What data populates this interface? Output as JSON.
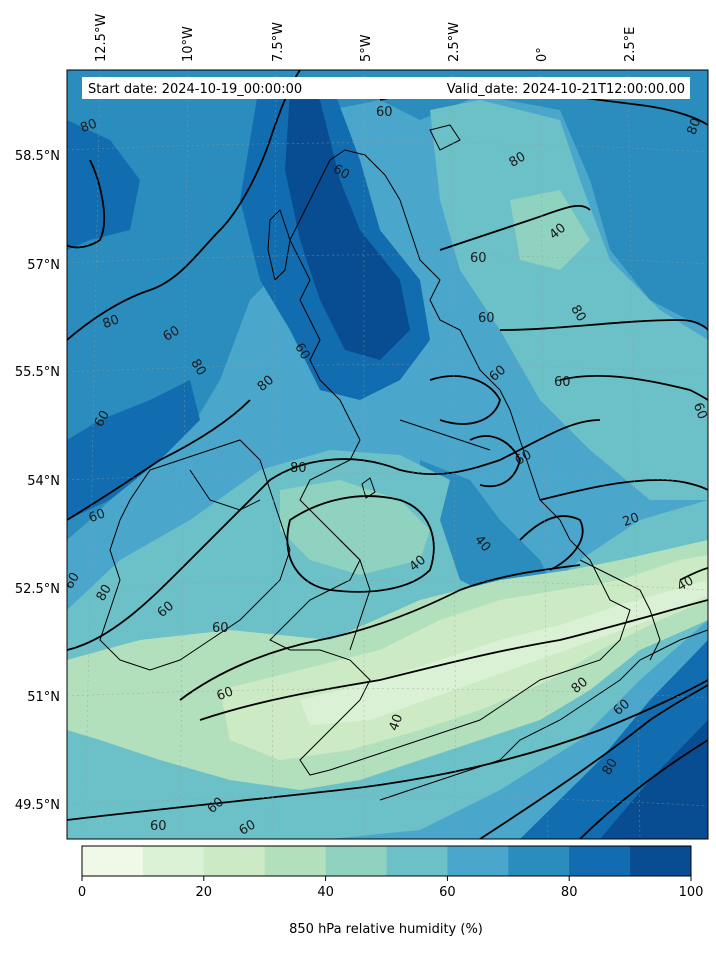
{
  "header": {
    "start_date": "Start date: 2024-10-19_00:00:00",
    "valid_date": "Valid_date: 2024-10-21T12:00:00.00"
  },
  "axes": {
    "longitude_labels": [
      "12.5°W",
      "10°W",
      "7.5°W",
      "5°W",
      "2.5°W",
      "0°",
      "2.5°E"
    ],
    "latitude_labels": [
      "58.5°N",
      "57°N",
      "55.5°N",
      "54°N",
      "52.5°N",
      "51°N",
      "49.5°N"
    ]
  },
  "contours": {
    "labels": [
      {
        "text": "80"
      },
      {
        "text": "60"
      },
      {
        "text": "60"
      },
      {
        "text": "80"
      },
      {
        "text": "40"
      },
      {
        "text": "60"
      },
      {
        "text": "80"
      },
      {
        "text": "60"
      },
      {
        "text": "80"
      },
      {
        "text": "60"
      },
      {
        "text": "80"
      },
      {
        "text": "80"
      },
      {
        "text": "60"
      },
      {
        "text": "60"
      },
      {
        "text": "80"
      },
      {
        "text": "60"
      },
      {
        "text": "60"
      },
      {
        "text": "60"
      },
      {
        "text": "80"
      },
      {
        "text": "60"
      },
      {
        "text": "60"
      },
      {
        "text": "20"
      },
      {
        "text": "40"
      },
      {
        "text": "40"
      },
      {
        "text": "40"
      },
      {
        "text": "60"
      },
      {
        "text": "80"
      },
      {
        "text": "60"
      },
      {
        "text": "60"
      },
      {
        "text": "60"
      },
      {
        "text": "80"
      },
      {
        "text": "60"
      }
    ]
  },
  "colorbar": {
    "ticks": [
      "0",
      "20",
      "40",
      "60",
      "80",
      "100"
    ],
    "label": "850 hPa relative humidity (%)",
    "colors": [
      "#f0f9e8",
      "#dbf1d5",
      "#ccebc5",
      "#b3e0bc",
      "#8fd2bf",
      "#6cc0c8",
      "#4ba6cc",
      "#2b8cbe",
      "#126db0",
      "#084d92"
    ]
  }
}
